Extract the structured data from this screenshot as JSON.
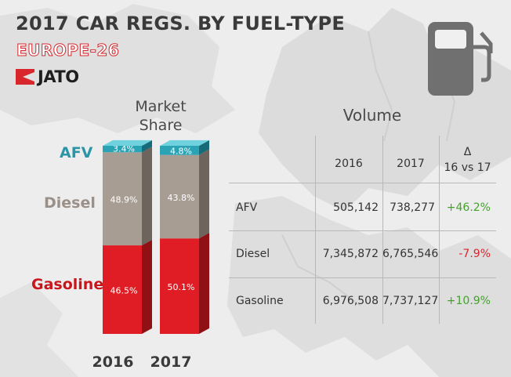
{
  "header": {
    "title": "2017 CAR REGS. BY FUEL-TYPE",
    "subtitle": "EUROPE-26",
    "brand": "JATO"
  },
  "icons": {
    "pump": "fuel-pump-icon",
    "brand_mark": "jato-arrow-logo"
  },
  "colors": {
    "afv": "#2aa3b5",
    "diesel": "#a89d93",
    "gasoline": "#e01d24",
    "positive": "#43a22a",
    "negative": "#d9262d"
  },
  "chart_data": [
    {
      "type": "bar",
      "stacked": true,
      "title": "Market Share",
      "categories": [
        "2016",
        "2017"
      ],
      "series": [
        {
          "name": "Gasoline",
          "values": [
            46.5,
            50.1
          ],
          "labels": [
            "46.5%",
            "50.1%"
          ]
        },
        {
          "name": "Diesel",
          "values": [
            48.9,
            43.8
          ],
          "labels": [
            "48.9%",
            "43.8%"
          ]
        },
        {
          "name": "AFV",
          "values": [
            3.4,
            4.8
          ],
          "labels": [
            "3.4%",
            "4.8%"
          ]
        }
      ],
      "ylim": [
        0,
        100
      ],
      "grid": false,
      "legend": "left"
    },
    {
      "type": "table",
      "title": "Volume",
      "columns": [
        "",
        "2016",
        "2017",
        "Δ",
        "16 vs 17"
      ],
      "rows": [
        {
          "fuel": "AFV",
          "v2016": "505,142",
          "v2017": "738,277",
          "delta": "+46.2%"
        },
        {
          "fuel": "Diesel",
          "v2016": "7,345,872",
          "v2017": "6,765,546",
          "delta": "-7.9%"
        },
        {
          "fuel": "Gasoline",
          "v2016": "6,976,508",
          "v2017": "7,737,127",
          "delta": "+10.9%"
        }
      ]
    }
  ]
}
